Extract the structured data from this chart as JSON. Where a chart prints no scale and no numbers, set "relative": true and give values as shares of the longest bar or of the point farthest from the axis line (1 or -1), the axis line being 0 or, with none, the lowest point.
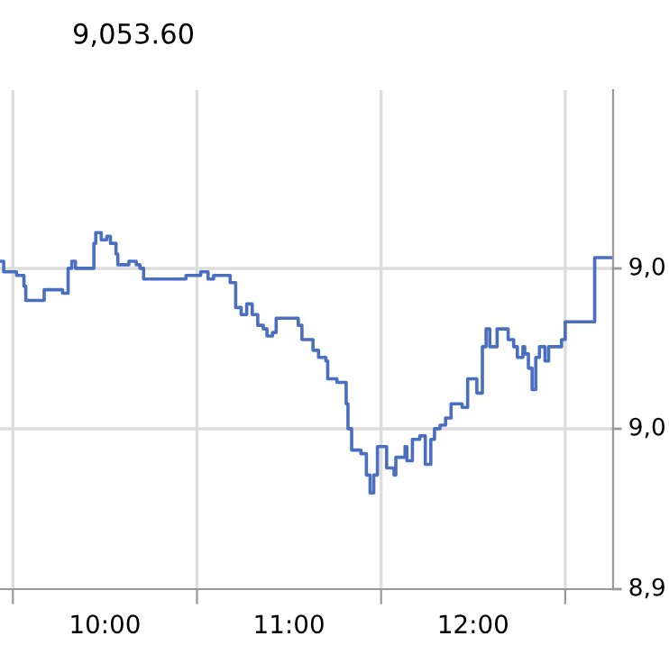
{
  "chart_data": {
    "type": "step",
    "title": "9,053.60",
    "relative": true,
    "x": [
      9.43,
      9.45,
      9.52,
      9.56,
      9.57,
      9.67,
      9.75,
      9.77,
      9.8,
      9.82,
      9.84,
      9.93,
      9.94,
      9.95,
      9.98,
      10.01,
      10.03,
      10.06,
      10.07,
      10.11,
      10.13,
      10.17,
      10.19,
      10.21,
      10.42,
      10.44,
      10.52,
      10.56,
      10.59,
      10.66,
      10.68,
      10.71,
      10.74,
      10.77,
      10.8,
      10.83,
      10.86,
      10.88,
      10.91,
      10.93,
      11.02,
      11.05,
      11.07,
      11.12,
      11.13,
      11.16,
      11.2,
      11.21,
      11.25,
      11.26,
      11.31,
      11.32,
      11.34,
      11.39,
      11.42,
      11.44,
      11.46,
      11.48,
      11.51,
      11.53,
      11.57,
      11.58,
      11.63,
      11.64,
      11.67,
      11.71,
      11.74,
      11.77,
      11.79,
      11.82,
      11.85,
      11.88,
      11.91,
      11.94,
      11.97,
      11.99,
      12.02,
      12.04,
      12.05,
      12.07,
      12.09,
      12.13,
      12.16,
      12.19,
      12.22,
      12.24,
      12.27,
      12.28,
      12.3,
      12.32,
      12.34,
      12.36,
      12.39,
      12.41,
      12.45,
      12.48,
      12.5,
      12.66,
      12.76
    ],
    "values": [
      0.92,
      0.89,
      0.88,
      0.85,
      0.81,
      0.84,
      0.84,
      0.83,
      0.9,
      0.92,
      0.9,
      0.9,
      0.97,
      1,
      0.98,
      0.99,
      0.97,
      0.94,
      0.91,
      0.91,
      0.92,
      0.91,
      0.9,
      0.87,
      0.87,
      0.88,
      0.89,
      0.87,
      0.88,
      0.88,
      0.86,
      0.79,
      0.77,
      0.8,
      0.77,
      0.74,
      0.73,
      0.71,
      0.72,
      0.76,
      0.76,
      0.74,
      0.7,
      0.7,
      0.67,
      0.65,
      0.64,
      0.59,
      0.59,
      0.58,
      0.52,
      0.45,
      0.39,
      0.38,
      0.32,
      0.27,
      0.32,
      0.4,
      0.4,
      0.34,
      0.32,
      0.37,
      0.4,
      0.36,
      0.42,
      0.43,
      0.35,
      0.42,
      0.45,
      0.46,
      0.48,
      0.52,
      0.52,
      0.51,
      0.59,
      0.59,
      0.55,
      0.55,
      0.68,
      0.73,
      0.68,
      0.73,
      0.73,
      0.7,
      0.68,
      0.65,
      0.68,
      0.66,
      0.62,
      0.56,
      0.65,
      0.68,
      0.64,
      0.68,
      0.68,
      0.7,
      0.75,
      0.93,
      0.93
    ],
    "color": "#4a6fc0",
    "xlim": [
      9.43,
      12.76
    ],
    "xticks": [
      {
        "value": 9.5,
        "label": null
      },
      {
        "value": 10,
        "label": "10:00"
      },
      {
        "value": 10.5,
        "label": null
      },
      {
        "value": 11,
        "label": "11:00"
      },
      {
        "value": 11.5,
        "label": null
      },
      {
        "value": 12,
        "label": "12:00"
      },
      {
        "value": 12.5,
        "label": null
      }
    ],
    "annotations": [
      "9,0",
      "9,0",
      "8,9"
    ],
    "grid": true
  }
}
